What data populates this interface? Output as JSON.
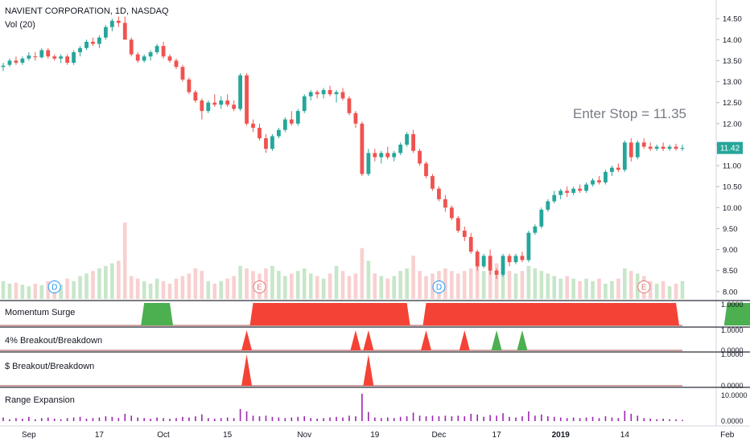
{
  "header": {
    "title": "NAVIENT CORPORATION, 1D, NASDAQ",
    "volume_label": "Vol (20)"
  },
  "annotation": {
    "text": "Enter Stop = 11.35",
    "color": "#787b86"
  },
  "colors": {
    "up": "#26a69a",
    "down": "#ef5350",
    "vol_up": "#c8e6c9",
    "vol_down": "#f8d0d0",
    "surge_green": "#4caf50",
    "surge_red": "#f44336",
    "range_bar": "#9c27b0",
    "baseline": "#a34a4a",
    "price_tag": "#26a69a",
    "event_blue": "#2196f3",
    "event_red": "#e57373"
  },
  "price_axis": {
    "ticks": [
      "14.50",
      "14.00",
      "13.50",
      "13.00",
      "12.50",
      "12.00",
      "11.50",
      "11.00",
      "10.50",
      "10.00",
      "9.50",
      "9.00",
      "8.50",
      "8.00"
    ],
    "last_price": "11.42"
  },
  "time_axis": {
    "labels": [
      "Sep",
      "17",
      "Oct",
      "15",
      "Nov",
      "19",
      "Dec",
      "17",
      "2019",
      "14",
      "Feb"
    ]
  },
  "events": [
    {
      "label": "D",
      "type": "dividend"
    },
    {
      "label": "E",
      "type": "earnings"
    },
    {
      "label": "D",
      "type": "dividend"
    },
    {
      "label": "E",
      "type": "earnings"
    }
  ],
  "panels": {
    "momentum": {
      "title": "Momentum Surge",
      "axis_max": "1.0000"
    },
    "pct_breakout": {
      "title": "4% Breakout/Breakdown",
      "axis_max": "1.0000",
      "axis_min": "0.0000"
    },
    "dollar_breakout": {
      "title": "$ Breakout/Breakdown",
      "axis_max": "1.0000",
      "axis_min": "0.0000"
    },
    "range": {
      "title": "Range Expansion",
      "axis_max": "10.0000",
      "axis_min": "0.0000"
    }
  },
  "chart_data": {
    "type": "candlestick",
    "title": "NAVIENT CORPORATION, 1D, NASDAQ",
    "ylim": [
      7.9,
      14.6
    ],
    "candles": [
      [
        13.35,
        13.45,
        13.25,
        13.38
      ],
      [
        13.4,
        13.55,
        13.35,
        13.5
      ],
      [
        13.5,
        13.6,
        13.4,
        13.45
      ],
      [
        13.45,
        13.6,
        13.4,
        13.55
      ],
      [
        13.55,
        13.7,
        13.5,
        13.62
      ],
      [
        13.6,
        13.7,
        13.5,
        13.58
      ],
      [
        13.58,
        13.8,
        13.55,
        13.75
      ],
      [
        13.75,
        13.8,
        13.55,
        13.6
      ],
      [
        13.6,
        13.65,
        13.5,
        13.55
      ],
      [
        13.55,
        13.65,
        13.45,
        13.6
      ],
      [
        13.6,
        13.65,
        13.4,
        13.45
      ],
      [
        13.45,
        13.75,
        13.4,
        13.7
      ],
      [
        13.7,
        13.85,
        13.6,
        13.8
      ],
      [
        13.8,
        14.0,
        13.75,
        13.95
      ],
      [
        13.95,
        14.05,
        13.85,
        13.9
      ],
      [
        13.9,
        14.1,
        13.8,
        14.05
      ],
      [
        14.05,
        14.35,
        14.0,
        14.3
      ],
      [
        14.3,
        14.5,
        14.2,
        14.45
      ],
      [
        14.45,
        14.55,
        14.3,
        14.4
      ],
      [
        14.4,
        14.55,
        14.0,
        14.0
      ],
      [
        14.0,
        14.05,
        13.6,
        13.65
      ],
      [
        13.65,
        13.7,
        13.45,
        13.5
      ],
      [
        13.5,
        13.65,
        13.45,
        13.6
      ],
      [
        13.6,
        13.75,
        13.5,
        13.7
      ],
      [
        13.7,
        13.9,
        13.65,
        13.85
      ],
      [
        13.85,
        13.95,
        13.55,
        13.6
      ],
      [
        13.6,
        13.65,
        13.45,
        13.5
      ],
      [
        13.5,
        13.55,
        13.3,
        13.35
      ],
      [
        13.35,
        13.4,
        13.0,
        13.05
      ],
      [
        13.05,
        13.1,
        12.7,
        12.75
      ],
      [
        12.75,
        12.8,
        12.5,
        12.55
      ],
      [
        12.55,
        12.6,
        12.1,
        12.3
      ],
      [
        12.3,
        12.55,
        12.25,
        12.5
      ],
      [
        12.5,
        12.7,
        12.4,
        12.45
      ],
      [
        12.45,
        12.65,
        12.35,
        12.55
      ],
      [
        12.55,
        12.7,
        12.4,
        12.45
      ],
      [
        12.45,
        12.55,
        12.3,
        12.35
      ],
      [
        12.35,
        13.2,
        12.3,
        13.15
      ],
      [
        13.15,
        13.2,
        11.95,
        12.0
      ],
      [
        12.0,
        12.1,
        11.8,
        11.9
      ],
      [
        11.9,
        12.0,
        11.6,
        11.65
      ],
      [
        11.65,
        11.75,
        11.3,
        11.4
      ],
      [
        11.4,
        11.75,
        11.35,
        11.7
      ],
      [
        11.7,
        11.9,
        11.65,
        11.85
      ],
      [
        11.85,
        12.15,
        11.8,
        12.1
      ],
      [
        12.1,
        12.3,
        11.95,
        12.0
      ],
      [
        12.0,
        12.35,
        11.95,
        12.3
      ],
      [
        12.3,
        12.7,
        12.25,
        12.65
      ],
      [
        12.65,
        12.8,
        12.55,
        12.75
      ],
      [
        12.75,
        12.8,
        12.6,
        12.7
      ],
      [
        12.7,
        12.85,
        12.6,
        12.8
      ],
      [
        12.8,
        12.9,
        12.65,
        12.7
      ],
      [
        12.7,
        12.8,
        12.5,
        12.75
      ],
      [
        12.75,
        12.85,
        12.55,
        12.6
      ],
      [
        12.6,
        12.65,
        12.2,
        12.25
      ],
      [
        12.25,
        12.3,
        11.9,
        12.0
      ],
      [
        12.0,
        12.05,
        10.75,
        10.8
      ],
      [
        10.8,
        11.4,
        10.75,
        11.3
      ],
      [
        11.3,
        11.4,
        11.1,
        11.2
      ],
      [
        11.2,
        11.35,
        11.05,
        11.3
      ],
      [
        11.3,
        11.45,
        11.15,
        11.2
      ],
      [
        11.2,
        11.35,
        11.1,
        11.3
      ],
      [
        11.3,
        11.55,
        11.25,
        11.5
      ],
      [
        11.5,
        11.8,
        11.45,
        11.75
      ],
      [
        11.75,
        11.85,
        11.3,
        11.35
      ],
      [
        11.35,
        11.4,
        11.0,
        11.05
      ],
      [
        11.05,
        11.1,
        10.7,
        10.75
      ],
      [
        10.75,
        10.8,
        10.4,
        10.45
      ],
      [
        10.45,
        10.5,
        10.15,
        10.2
      ],
      [
        10.2,
        10.3,
        9.9,
        10.0
      ],
      [
        10.0,
        10.05,
        9.7,
        9.75
      ],
      [
        9.75,
        9.8,
        9.4,
        9.45
      ],
      [
        9.45,
        9.55,
        9.2,
        9.3
      ],
      [
        9.3,
        9.4,
        8.9,
        8.95
      ],
      [
        8.95,
        9.0,
        8.5,
        8.6
      ],
      [
        8.6,
        8.9,
        8.55,
        8.85
      ],
      [
        8.85,
        9.0,
        8.4,
        8.5
      ],
      [
        8.5,
        8.55,
        8.3,
        8.4
      ],
      [
        8.4,
        8.9,
        8.35,
        8.85
      ],
      [
        8.85,
        8.9,
        8.6,
        8.7
      ],
      [
        8.7,
        8.9,
        8.65,
        8.85
      ],
      [
        8.85,
        8.95,
        8.7,
        8.75
      ],
      [
        8.75,
        9.45,
        8.7,
        9.4
      ],
      [
        9.4,
        9.6,
        9.35,
        9.55
      ],
      [
        9.55,
        10.0,
        9.5,
        9.95
      ],
      [
        9.95,
        10.2,
        9.9,
        10.15
      ],
      [
        10.15,
        10.4,
        10.1,
        10.3
      ],
      [
        10.3,
        10.45,
        10.2,
        10.4
      ],
      [
        10.4,
        10.5,
        10.25,
        10.35
      ],
      [
        10.35,
        10.5,
        10.3,
        10.45
      ],
      [
        10.45,
        10.55,
        10.35,
        10.4
      ],
      [
        10.4,
        10.6,
        10.35,
        10.55
      ],
      [
        10.55,
        10.7,
        10.5,
        10.65
      ],
      [
        10.65,
        10.75,
        10.55,
        10.6
      ],
      [
        10.6,
        10.9,
        10.55,
        10.85
      ],
      [
        10.85,
        11.0,
        10.75,
        10.95
      ],
      [
        10.95,
        11.05,
        10.85,
        10.9
      ],
      [
        10.9,
        11.6,
        10.85,
        11.55
      ],
      [
        11.55,
        11.65,
        11.1,
        11.2
      ],
      [
        11.2,
        11.6,
        11.15,
        11.55
      ],
      [
        11.55,
        11.65,
        11.4,
        11.45
      ],
      [
        11.45,
        11.55,
        11.35,
        11.4
      ],
      [
        11.4,
        11.5,
        11.35,
        11.45
      ],
      [
        11.45,
        11.55,
        11.35,
        11.4
      ],
      [
        11.4,
        11.5,
        11.35,
        11.45
      ],
      [
        11.45,
        11.52,
        11.36,
        11.4
      ],
      [
        11.4,
        11.5,
        11.35,
        11.42
      ]
    ],
    "volume_relative": [
      0.35,
      0.3,
      0.32,
      0.28,
      0.25,
      0.3,
      0.27,
      0.35,
      0.3,
      0.28,
      0.4,
      0.35,
      0.45,
      0.5,
      0.55,
      0.6,
      0.65,
      0.7,
      0.75,
      1.5,
      0.45,
      0.4,
      0.35,
      0.3,
      0.4,
      0.35,
      0.3,
      0.4,
      0.45,
      0.5,
      0.6,
      0.55,
      0.35,
      0.3,
      0.35,
      0.4,
      0.45,
      0.65,
      0.6,
      0.55,
      0.5,
      0.6,
      0.65,
      0.55,
      0.45,
      0.5,
      0.55,
      0.6,
      0.5,
      0.45,
      0.4,
      0.5,
      0.65,
      0.55,
      0.45,
      0.5,
      1.0,
      0.75,
      0.5,
      0.45,
      0.4,
      0.45,
      0.55,
      0.6,
      0.85,
      0.55,
      0.45,
      0.5,
      0.55,
      0.6,
      0.55,
      0.5,
      0.55,
      0.6,
      0.65,
      0.55,
      0.6,
      0.7,
      0.65,
      0.55,
      0.5,
      0.55,
      0.65,
      0.6,
      0.55,
      0.5,
      0.45,
      0.4,
      0.45,
      0.4,
      0.35,
      0.4,
      0.35,
      0.4,
      0.3,
      0.35,
      0.4,
      0.6,
      0.55,
      0.5,
      0.45,
      0.35,
      0.3,
      0.35,
      0.25,
      0.3,
      0.35
    ],
    "momentum_surge": [
      {
        "start": 22,
        "end": 26,
        "direction": "up"
      },
      {
        "start": 39,
        "end": 63,
        "direction": "down"
      },
      {
        "start": 66,
        "end": 105,
        "direction": "down"
      },
      {
        "start": 113,
        "end": 119,
        "direction": "up"
      }
    ],
    "pct_breakout_signals": [
      {
        "index": 38,
        "direction": "down"
      },
      {
        "index": 55,
        "direction": "down"
      },
      {
        "index": 57,
        "direction": "down"
      },
      {
        "index": 66,
        "direction": "down"
      },
      {
        "index": 72,
        "direction": "down"
      },
      {
        "index": 77,
        "direction": "up"
      },
      {
        "index": 81,
        "direction": "up"
      }
    ],
    "dollar_breakout_signals": [
      {
        "index": 38,
        "direction": "down"
      },
      {
        "index": 57,
        "direction": "down"
      }
    ],
    "range_expansion": [
      0.6,
      0.3,
      0.5,
      0.4,
      0.7,
      0.3,
      0.5,
      0.6,
      0.4,
      0.3,
      0.5,
      0.6,
      0.7,
      0.4,
      0.5,
      0.6,
      0.8,
      0.7,
      0.5,
      1.2,
      0.9,
      0.6,
      0.5,
      0.4,
      0.6,
      0.5,
      0.4,
      0.5,
      0.7,
      0.6,
      0.8,
      1.1,
      0.5,
      0.4,
      0.5,
      0.6,
      0.5,
      2.0,
      1.6,
      0.9,
      0.8,
      0.9,
      0.7,
      0.6,
      0.5,
      0.6,
      0.7,
      0.8,
      0.5,
      0.4,
      0.5,
      0.6,
      0.7,
      0.6,
      0.9,
      0.8,
      4.5,
      1.5,
      0.6,
      0.5,
      0.6,
      0.5,
      0.7,
      0.8,
      1.4,
      0.9,
      0.8,
      0.9,
      0.8,
      0.9,
      0.8,
      0.9,
      0.8,
      1.2,
      1.1,
      0.7,
      1.0,
      0.9,
      1.3,
      0.7,
      0.6,
      0.8,
      1.6,
      0.9,
      1.1,
      0.8,
      0.7,
      0.6,
      0.5,
      0.6,
      0.5,
      0.6,
      0.7,
      0.5,
      0.8,
      0.6,
      0.5,
      1.7,
      1.2,
      0.9,
      0.5,
      0.4,
      0.3,
      0.4,
      0.3,
      0.3,
      0.2
    ]
  }
}
